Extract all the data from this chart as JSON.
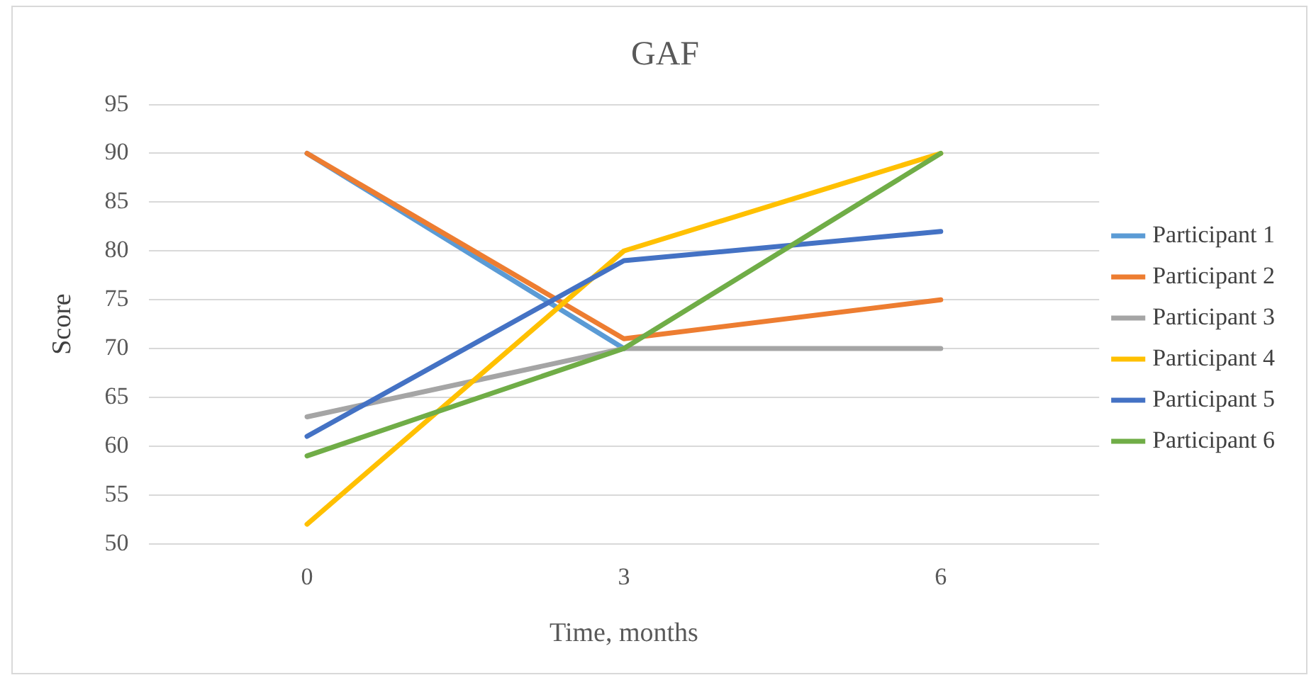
{
  "chart_data": {
    "type": "line",
    "title": "GAF",
    "xlabel": "Time, months",
    "ylabel": "Score",
    "categories": [
      "0",
      "3",
      "6"
    ],
    "series": [
      {
        "name": "Participant 1",
        "color": "#5b9bd5",
        "values": [
          90,
          70,
          null
        ]
      },
      {
        "name": "Participant 2",
        "color": "#ed7d31",
        "values": [
          90,
          71,
          75
        ]
      },
      {
        "name": "Participant 3",
        "color": "#a5a5a5",
        "values": [
          63,
          70,
          70
        ]
      },
      {
        "name": "Participant 4",
        "color": "#ffc000",
        "values": [
          52,
          80,
          90
        ]
      },
      {
        "name": "Participant 5",
        "color": "#4472c4",
        "values": [
          61,
          79,
          82
        ]
      },
      {
        "name": "Participant 6",
        "color": "#70ad47",
        "values": [
          59,
          70,
          90
        ]
      }
    ],
    "ylim": [
      50,
      95
    ],
    "yticks": [
      50,
      55,
      60,
      65,
      70,
      75,
      80,
      85,
      90,
      95
    ],
    "grid": "y",
    "legend": "right",
    "marker": "none",
    "line_style": "solid"
  }
}
